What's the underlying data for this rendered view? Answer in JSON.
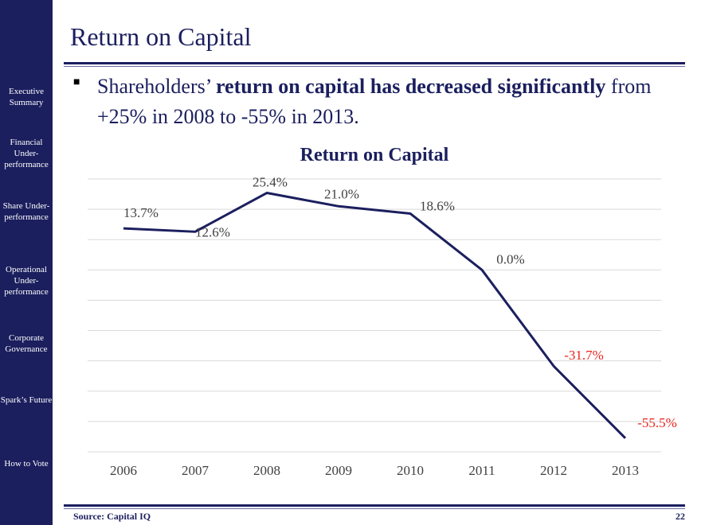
{
  "slide": {
    "title": "Return on Capital",
    "headline": {
      "part1": "Shareholders’ ",
      "bold1": "return on capital has decreased significantly",
      "part2": " from +25% in 2008 to -55% in 2013."
    },
    "source": "Source: Capital IQ",
    "page_number": "22"
  },
  "sidebar": {
    "items": [
      {
        "label": "Executive Summary"
      },
      {
        "label": "Financial Under-performance"
      },
      {
        "label": "Share Under-performance"
      },
      {
        "label": "Operational Under-performance"
      },
      {
        "label": "Corporate Governance"
      },
      {
        "label": "Spark’s Future"
      },
      {
        "label": "How to Vote"
      }
    ]
  },
  "colors": {
    "navy": "#1b1f5e",
    "negative_label": "#e8231f",
    "gridline": "#d9d9d9"
  },
  "chart_data": {
    "type": "line",
    "title": "Return on Capital",
    "xlabel": "",
    "ylabel": "",
    "categories": [
      "2006",
      "2007",
      "2008",
      "2009",
      "2010",
      "2011",
      "2012",
      "2013"
    ],
    "series": [
      {
        "values": [
          13.7,
          12.6,
          25.4,
          21.0,
          18.6,
          0.0,
          -31.7,
          -55.5
        ],
        "labels": [
          "13.7%",
          "12.6%",
          "25.4%",
          "21.0%",
          "18.6%",
          "0.0%",
          "-31.7%",
          "-55.5%"
        ]
      }
    ],
    "ylim": [
      -60,
      30
    ],
    "grid": true,
    "legend": "none"
  }
}
